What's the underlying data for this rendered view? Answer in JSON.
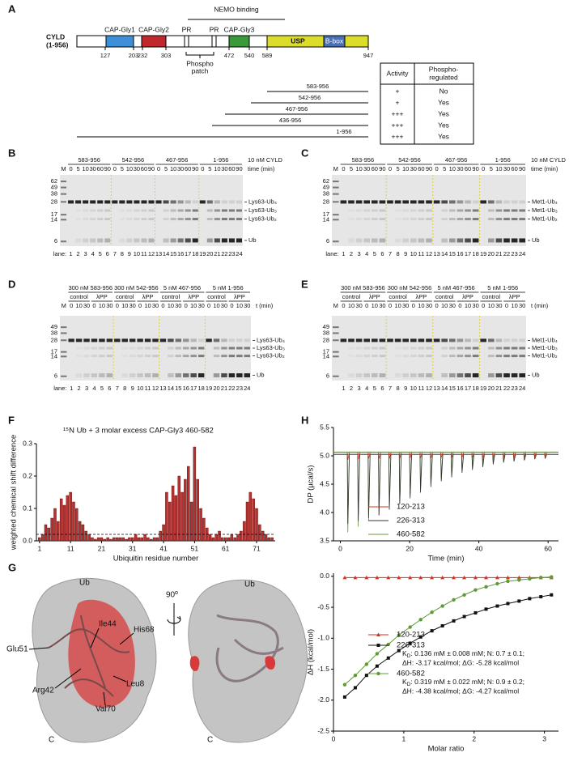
{
  "panel_a": {
    "letter": "A",
    "protein": "CYLD",
    "protein_range": "(1-956)",
    "nemo_label": "NEMO binding",
    "domains": {
      "cap_gly1": "CAP-Gly1",
      "cap_gly2": "CAP-Gly2",
      "pr1": "PR",
      "pr2": "PR",
      "cap_gly3": "CAP-Gly3",
      "usp": "USP",
      "b_box": "B-box"
    },
    "positions": [
      127,
      203,
      232,
      303,
      472,
      540,
      589,
      947
    ],
    "phospho_patch": [
      "Phospho",
      "patch"
    ],
    "table_header": {
      "activity": "Activity",
      "phospho": [
        "Phospho-",
        "regulated"
      ]
    },
    "constructs": [
      {
        "label": "583-956",
        "activity": "+",
        "phospho_regulated": "No"
      },
      {
        "label": "542-956",
        "activity": "+",
        "phospho_regulated": "Yes"
      },
      {
        "label": "467-956",
        "activity": "+++",
        "phospho_regulated": "Yes"
      },
      {
        "label": "436-956",
        "activity": "+++",
        "phospho_regulated": "Yes"
      },
      {
        "label": "1-956",
        "activity": "+++",
        "phospho_regulated": "Yes"
      }
    ]
  },
  "panel_b": {
    "letter": "B",
    "conc": "10 nM CYLD",
    "time_label": "time (min)",
    "m": "M",
    "groups": [
      "583-956",
      "542-956",
      "467-956",
      "1-956"
    ],
    "times": [
      0,
      5,
      10,
      30,
      60,
      90
    ],
    "markers": [
      62,
      49,
      38,
      28,
      17,
      14,
      6
    ],
    "bands": [
      "Lys63-Ub₄",
      "Lys63-Ub₃",
      "Lys63-Ub₂",
      "Ub"
    ],
    "lane_label": "lane:",
    "lanes": [
      1,
      2,
      3,
      4,
      5,
      6,
      7,
      8,
      9,
      10,
      11,
      12,
      13,
      14,
      15,
      16,
      17,
      18,
      19,
      20,
      21,
      22,
      23,
      24
    ]
  },
  "panel_c": {
    "letter": "C",
    "conc": "10 nM CYLD",
    "time_label": "time (min)",
    "m": "M",
    "groups": [
      "583-956",
      "542-956",
      "467-956",
      "1-956"
    ],
    "times": [
      0,
      5,
      10,
      30,
      60,
      90
    ],
    "markers": [
      62,
      49,
      38,
      28,
      17,
      14,
      6
    ],
    "bands": [
      "Met1-Ub₄",
      "Met1-Ub₃",
      "Met1-Ub₂",
      "Ub"
    ],
    "lane_label": "lane:",
    "lanes": [
      1,
      2,
      3,
      4,
      5,
      6,
      7,
      8,
      9,
      10,
      11,
      12,
      13,
      14,
      15,
      16,
      17,
      18,
      19,
      20,
      21,
      22,
      23,
      24
    ]
  },
  "panel_d": {
    "letter": "D",
    "time_label": "t (min)",
    "m": "M",
    "groups": [
      "300 nM 583-956",
      "300 nM 542-956",
      "5 nM 467-956",
      "5 nM 1-956"
    ],
    "subgroups": [
      "control",
      "λPP"
    ],
    "times": [
      0,
      10,
      30
    ],
    "markers": [
      49,
      38,
      28,
      17,
      14,
      6
    ],
    "bands": [
      "Lys63-Ub₄",
      "Lys63-Ub₃",
      "Lys63-Ub₂",
      "Ub"
    ],
    "lane_label": "lane:",
    "lanes": [
      1,
      2,
      3,
      4,
      5,
      6,
      7,
      8,
      9,
      10,
      11,
      12,
      13,
      14,
      15,
      16,
      17,
      18,
      19,
      20,
      21,
      22,
      23,
      24
    ]
  },
  "panel_e": {
    "letter": "E",
    "time_label": "t (min)",
    "m": "M",
    "groups": [
      "300 nM 583-956",
      "300 nM 542-956",
      "5 nM 467-956",
      "5 nM 1-956"
    ],
    "subgroups": [
      "control",
      "λPP"
    ],
    "times": [
      0,
      10,
      30
    ],
    "markers": [
      49,
      38,
      28,
      17,
      14,
      6
    ],
    "bands": [
      "Met1-Ub₄",
      "Met1-Ub₃",
      "Met1-Ub₂",
      "Ub"
    ],
    "lanes": [
      1,
      2,
      3,
      4,
      5,
      6,
      7,
      8,
      9,
      10,
      11,
      12,
      13,
      14,
      15,
      16,
      17,
      18,
      19,
      20,
      21,
      22,
      23,
      24
    ]
  },
  "panel_f": {
    "letter": "F",
    "chart_data": {
      "type": "bar",
      "title": "¹⁵N Ub + 3 molar excess CAP-Gly3 460-582",
      "y_label": "weighted chemical shift difference",
      "x_label": "Ubiquitin residue number",
      "color": "#b8312f",
      "x": [
        1,
        2,
        3,
        4,
        5,
        6,
        7,
        8,
        9,
        10,
        11,
        12,
        13,
        14,
        15,
        16,
        17,
        18,
        19,
        20,
        21,
        22,
        23,
        24,
        25,
        26,
        27,
        28,
        29,
        30,
        31,
        32,
        33,
        34,
        35,
        36,
        37,
        38,
        39,
        40,
        41,
        42,
        43,
        44,
        45,
        46,
        47,
        48,
        49,
        50,
        51,
        52,
        53,
        54,
        55,
        56,
        57,
        58,
        59,
        60,
        61,
        62,
        63,
        64,
        65,
        66,
        67,
        68,
        69,
        70,
        71,
        72,
        73,
        74,
        75,
        76
      ],
      "values": [
        0.01,
        0.02,
        0.05,
        0.04,
        0.07,
        0.1,
        0.06,
        0.13,
        0.11,
        0.14,
        0.15,
        0.12,
        0.1,
        0.06,
        0.05,
        0.03,
        0.02,
        0.01,
        0.005,
        0.01,
        0.01,
        0.005,
        0.01,
        0.005,
        0.01,
        0.01,
        0.01,
        0.01,
        0.005,
        0.01,
        0.01,
        0.02,
        0.01,
        0.01,
        0.02,
        0.01,
        0.005,
        0.01,
        0.01,
        0.03,
        0.05,
        0.15,
        0.12,
        0.17,
        0.14,
        0.2,
        0.15,
        0.19,
        0.23,
        0.12,
        0.29,
        0.19,
        0.1,
        0.07,
        0.04,
        0.02,
        0.01,
        0.02,
        0.03,
        0.01,
        0.01,
        0.01,
        0.02,
        0.01,
        0.02,
        0.03,
        0.06,
        0.12,
        0.15,
        0.13,
        0.1,
        0.05,
        0.03,
        0.02,
        0.01,
        0.01
      ],
      "cutoff_line": 0.02,
      "xlim": [
        0,
        77
      ],
      "xticks": [
        1,
        11,
        21,
        31,
        41,
        51,
        61,
        71
      ],
      "ylim": [
        0,
        0.3
      ],
      "yticks": [
        {
          "value": 0,
          "label": "0.0"
        },
        0.1,
        0.2,
        0.3
      ]
    }
  },
  "panel_g": {
    "letter": "G",
    "labels": {
      "ub_left": "Ub",
      "ile44": "Ile44",
      "his68": "His68",
      "glu51": "Glu51",
      "arg42": "Arg42",
      "leu8": "Leu8",
      "val70": "Val70",
      "c_left": "C",
      "rotation": "90º",
      "ub_right": "Ub",
      "c_right": "C"
    }
  },
  "panel_h": {
    "letter": "H",
    "charts": [
      {
        "type": "itc_raw",
        "y_label": "DP (µcal/s)",
        "x_label": "Time (min)",
        "xlim": [
          -2,
          63
        ],
        "xticks": [
          0,
          20,
          40,
          60
        ],
        "ylim": [
          3.5,
          5.5
        ],
        "yticks": [
          3.5,
          {
            "value": 4,
            "label": "4.0"
          },
          4.5,
          {
            "value": 5,
            "label": "5.0"
          },
          5.5
        ],
        "x": [
          2,
          5,
          8,
          11,
          14,
          17,
          20,
          23,
          26,
          29,
          32,
          35,
          38,
          41,
          44,
          47,
          50,
          53,
          56,
          59
        ],
        "series": [
          {
            "name": "120-213",
            "color": "#d7301f",
            "baseline": 5.05,
            "values": [
              4.93,
              4.94,
              4.95,
              4.95,
              4.95,
              4.96,
              4.96,
              4.96,
              4.96,
              4.97,
              4.97,
              4.97,
              4.97,
              4.97,
              4.97,
              4.97,
              4.97,
              4.97,
              4.97,
              4.97
            ]
          },
          {
            "name": "226-313",
            "color": "#333333",
            "baseline": 5.02,
            "values": [
              3.8,
              3.85,
              3.9,
              3.95,
              4.05,
              4.15,
              4.25,
              4.35,
              4.45,
              4.55,
              4.62,
              4.7,
              4.75,
              4.8,
              4.85,
              4.88,
              4.9,
              4.92,
              4.94,
              4.95
            ]
          },
          {
            "name": "460-582",
            "color": "#6a9a3a",
            "baseline": 5.07,
            "values": [
              3.65,
              3.75,
              3.85,
              3.95,
              4.05,
              4.15,
              4.3,
              4.4,
              4.5,
              4.6,
              4.68,
              4.75,
              4.82,
              4.87,
              4.9,
              4.93,
              4.95,
              4.97,
              4.98,
              4.98
            ]
          }
        ]
      },
      {
        "type": "itc_fit",
        "y_label": "ΔH (kcal/mol)",
        "x_label": "Molar ratio",
        "xlim": [
          0,
          3.2
        ],
        "xticks": [
          0,
          1,
          2,
          3
        ],
        "ylim": [
          -2.5,
          0.05
        ],
        "yticks": [
          {
            "value": 0,
            "label": "0.0"
          },
          -0.5,
          {
            "value": -1,
            "label": "-1.0"
          },
          -1.5,
          {
            "value": -2,
            "label": "-2.0"
          },
          -2.5
        ],
        "x": [
          0.16,
          0.31,
          0.47,
          0.62,
          0.78,
          0.93,
          1.09,
          1.24,
          1.4,
          1.55,
          1.71,
          1.86,
          2.02,
          2.17,
          2.33,
          2.48,
          2.64,
          2.79,
          2.95,
          3.1
        ],
        "series": [
          {
            "name": "120-213",
            "color": "#d7301f",
            "marker": "triangle",
            "values": [
              -0.02,
              -0.02,
              -0.02,
              -0.02,
              -0.02,
              -0.02,
              -0.02,
              -0.02,
              -0.02,
              -0.02,
              -0.02,
              -0.02,
              -0.02,
              -0.02,
              -0.02,
              -0.02,
              -0.02,
              -0.02,
              -0.02,
              -0.02
            ]
          },
          {
            "name": "226-313",
            "color": "#111111",
            "marker": "square",
            "values": [
              -1.95,
              -1.8,
              -1.6,
              -1.45,
              -1.32,
              -1.2,
              -1.08,
              -0.98,
              -0.88,
              -0.8,
              -0.72,
              -0.65,
              -0.59,
              -0.53,
              -0.48,
              -0.44,
              -0.4,
              -0.36,
              -0.33,
              -0.3
            ],
            "kd": {
              "symbol": "K",
              "subscript": "D",
              "text": ": 0.136 mM ± 0.008 mM; N: 0.7 ± 0.1;"
            },
            "thermo": "ΔH: -3.17 kcal/mol; ΔG: -5.28 kcal/mol"
          },
          {
            "name": "460-582",
            "color": "#5f9a35",
            "marker": "circle",
            "values": [
              -1.75,
              -1.6,
              -1.42,
              -1.25,
              -1.1,
              -0.95,
              -0.82,
              -0.7,
              -0.58,
              -0.48,
              -0.38,
              -0.3,
              -0.22,
              -0.17,
              -0.12,
              -0.08,
              -0.06,
              -0.04,
              -0.02,
              -0.01
            ],
            "kd": {
              "symbol": "K",
              "subscript": "D",
              "text": ": 0.319 mM ± 0.022 mM; N: 0.9 ± 0.2;"
            },
            "thermo": "ΔH: -4.38 kcal/mol; ΔG: -4.27 kcal/mol"
          }
        ]
      }
    ]
  }
}
